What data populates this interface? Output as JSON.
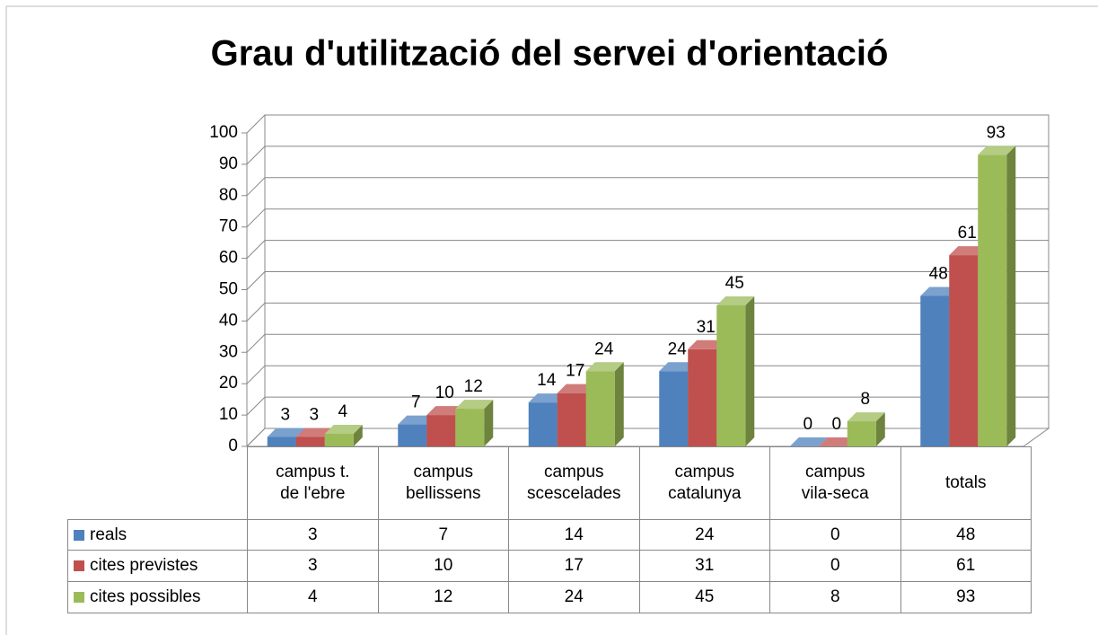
{
  "chart_data": {
    "type": "bar3d",
    "title": "Grau d'utilització del servei d'orientació",
    "categories": [
      "campus t.\nde l'ebre",
      "campus\nbellissens",
      "campus\nscescelades",
      "campus\ncatalunya",
      "campus\nvila-seca",
      "totals"
    ],
    "series": [
      {
        "name": "reals",
        "color": "#4f81bd",
        "values": [
          3,
          7,
          14,
          24,
          0,
          48
        ]
      },
      {
        "name": "cites previstes",
        "color": "#c0504d",
        "values": [
          3,
          10,
          17,
          31,
          0,
          61
        ]
      },
      {
        "name": "cites possibles",
        "color": "#9bbb59",
        "values": [
          4,
          12,
          24,
          45,
          8,
          93
        ]
      }
    ],
    "ylim": [
      0,
      100
    ],
    "yticks": [
      0,
      10,
      20,
      30,
      40,
      50,
      60,
      70,
      80,
      90,
      100
    ],
    "grid": true,
    "data_table": true
  }
}
